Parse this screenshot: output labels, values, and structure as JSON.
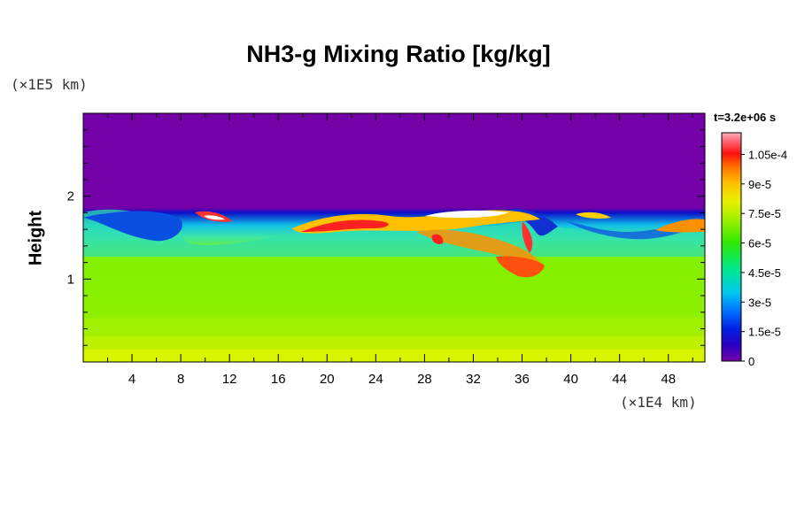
{
  "chart_data": {
    "type": "heatmap",
    "title": "NH3-g Mixing Ratio [kg/kg]",
    "ylabel": "Height",
    "y_unit": "(×1E5 km)",
    "x_unit": "(×1E4 km)",
    "time_label": "t=3.2e+06 s",
    "x_ticks": [
      "4",
      "8",
      "12",
      "16",
      "20",
      "24",
      "28",
      "32",
      "36",
      "40",
      "44",
      "48"
    ],
    "y_ticks": [
      "1",
      "2"
    ],
    "xlim": [
      0,
      51
    ],
    "ylim": [
      0,
      3
    ],
    "colorbar": {
      "ticks": [
        "0",
        "1.5e-5",
        "3e-5",
        "4.5e-5",
        "6e-5",
        "7.5e-5",
        "9e-5",
        "1.05e-4"
      ],
      "range": [
        0,
        0.000116
      ]
    },
    "colors": {
      "background_field": "#7400a8",
      "low_layer": "#d6f200",
      "mid_layer": "#80f000",
      "peak": "#ff3030"
    }
  }
}
